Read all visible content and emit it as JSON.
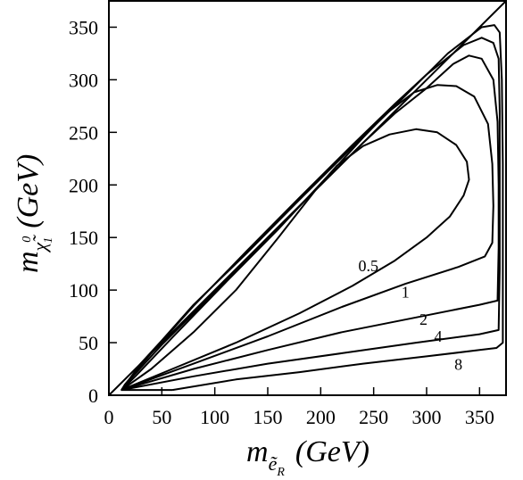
{
  "chart_data": {
    "type": "line",
    "title": "",
    "xlabel": {
      "main": "m",
      "sub": "ẽ",
      "subsub": "R",
      "unit": "(GeV)"
    },
    "ylabel": {
      "main": "m",
      "sub": "χ̃",
      "sup": "0",
      "subsub": "1",
      "unit": "(GeV)"
    },
    "xlim": [
      0,
      375
    ],
    "ylim": [
      0,
      375
    ],
    "xticks": [
      0,
      50,
      100,
      150,
      200,
      250,
      300,
      350
    ],
    "yticks": [
      0,
      50,
      100,
      150,
      200,
      250,
      300,
      350
    ],
    "grid": false,
    "boundary": {
      "name": "",
      "points": [
        [
          0,
          0
        ],
        [
          375,
          375
        ]
      ]
    },
    "series": [
      {
        "name": "0.5",
        "points": [
          [
            12,
            5
          ],
          [
            60,
            25
          ],
          [
            120,
            50
          ],
          [
            180,
            78
          ],
          [
            230,
            104
          ],
          [
            270,
            128
          ],
          [
            300,
            150
          ],
          [
            322,
            170
          ],
          [
            335,
            190
          ],
          [
            340,
            205
          ],
          [
            338,
            222
          ],
          [
            328,
            238
          ],
          [
            310,
            250
          ],
          [
            290,
            253
          ],
          [
            265,
            248
          ],
          [
            240,
            237
          ],
          [
            215,
            218
          ],
          [
            195,
            195
          ],
          [
            160,
            150
          ],
          [
            120,
            100
          ],
          [
            80,
            60
          ],
          [
            40,
            25
          ],
          [
            12,
            5
          ]
        ]
      },
      {
        "name": "1",
        "points": [
          [
            12,
            5
          ],
          [
            80,
            30
          ],
          [
            150,
            56
          ],
          [
            220,
            84
          ],
          [
            280,
            106
          ],
          [
            330,
            122
          ],
          [
            355,
            132
          ],
          [
            362,
            145
          ],
          [
            363,
            180
          ],
          [
            362,
            220
          ],
          [
            358,
            258
          ],
          [
            345,
            284
          ],
          [
            328,
            294
          ],
          [
            310,
            295
          ],
          [
            288,
            288
          ],
          [
            262,
            268
          ],
          [
            240,
            245
          ],
          [
            210,
            212
          ],
          [
            160,
            158
          ],
          [
            110,
            107
          ],
          [
            60,
            55
          ],
          [
            25,
            18
          ],
          [
            12,
            5
          ]
        ]
      },
      {
        "name": "2",
        "points": [
          [
            12,
            5
          ],
          [
            80,
            25
          ],
          [
            150,
            43
          ],
          [
            220,
            60
          ],
          [
            290,
            74
          ],
          [
            350,
            86
          ],
          [
            367,
            90
          ],
          [
            368,
            140
          ],
          [
            368,
            200
          ],
          [
            367,
            260
          ],
          [
            363,
            300
          ],
          [
            352,
            320
          ],
          [
            340,
            323
          ],
          [
            325,
            315
          ],
          [
            300,
            292
          ],
          [
            270,
            268
          ],
          [
            240,
            240
          ],
          [
            200,
            200
          ],
          [
            150,
            150
          ],
          [
            100,
            98
          ],
          [
            50,
            48
          ],
          [
            20,
            15
          ],
          [
            12,
            5
          ]
        ]
      },
      {
        "name": "4",
        "points": [
          [
            12,
            5
          ],
          [
            80,
            18
          ],
          [
            150,
            30
          ],
          [
            220,
            40
          ],
          [
            290,
            50
          ],
          [
            350,
            58
          ],
          [
            368,
            62
          ],
          [
            369,
            120
          ],
          [
            369,
            200
          ],
          [
            369,
            270
          ],
          [
            368,
            320
          ],
          [
            363,
            335
          ],
          [
            352,
            340
          ],
          [
            335,
            333
          ],
          [
            300,
            305
          ],
          [
            270,
            277
          ],
          [
            230,
            238
          ],
          [
            180,
            188
          ],
          [
            130,
            137
          ],
          [
            80,
            85
          ],
          [
            40,
            40
          ],
          [
            15,
            10
          ],
          [
            12,
            5
          ]
        ]
      },
      {
        "name": "8",
        "points": [
          [
            60,
            5
          ],
          [
            120,
            15
          ],
          [
            180,
            22
          ],
          [
            240,
            30
          ],
          [
            300,
            37
          ],
          [
            350,
            43
          ],
          [
            366,
            45
          ],
          [
            372,
            50
          ],
          [
            372,
            120
          ],
          [
            372,
            220
          ],
          [
            371,
            300
          ],
          [
            369,
            345
          ],
          [
            364,
            352
          ],
          [
            352,
            350
          ],
          [
            320,
            325
          ],
          [
            280,
            285
          ],
          [
            230,
            236
          ],
          [
            180,
            186
          ],
          [
            130,
            135
          ],
          [
            80,
            86
          ],
          [
            50,
            52
          ],
          [
            30,
            30
          ],
          [
            12,
            5
          ],
          [
            60,
            5
          ]
        ]
      }
    ],
    "contour_labels": [
      {
        "text": "0.5",
        "x": 245,
        "y": 118
      },
      {
        "text": "1",
        "x": 280,
        "y": 93
      },
      {
        "text": "2",
        "x": 297,
        "y": 67
      },
      {
        "text": "4",
        "x": 311,
        "y": 51
      },
      {
        "text": "8",
        "x": 330,
        "y": 24
      }
    ]
  }
}
